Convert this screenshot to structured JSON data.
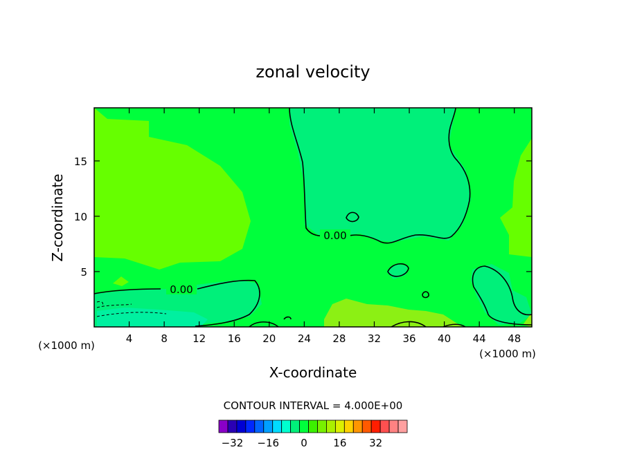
{
  "chart_data": {
    "type": "contour",
    "title": "zonal velocity",
    "xlabel": "X-coordinate",
    "ylabel": "Z-coordinate",
    "x_unit_note": "(×1000 m)",
    "y_unit_note": "(×1000 m)",
    "xlim": [
      0,
      50
    ],
    "ylim": [
      0,
      19.8
    ],
    "x_ticks": [
      4,
      8,
      12,
      16,
      20,
      24,
      28,
      32,
      36,
      40,
      44,
      48
    ],
    "y_ticks": [
      5,
      10,
      15
    ],
    "x_tick_labels": [
      "4",
      "8",
      "12",
      "16",
      "20",
      "24",
      "28",
      "32",
      "36",
      "40",
      "44",
      "48"
    ],
    "y_tick_labels": [
      "5",
      "10",
      "15"
    ],
    "contour_line_labels": [
      "0.00",
      "0.00"
    ],
    "contour_interval_text": "CONTOUR INTERVAL = 4.000E+00",
    "colorbar": {
      "levels": [
        -36,
        -32,
        -28,
        -24,
        -20,
        -16,
        -12,
        -8,
        -4,
        0,
        4,
        8,
        12,
        16,
        20,
        24,
        28,
        32,
        36
      ],
      "colors": [
        "#8a00c8",
        "#2a00b4",
        "#0000d4",
        "#0028ff",
        "#0064ff",
        "#00a0ff",
        "#00dcff",
        "#00ffd0",
        "#00f07a",
        "#00ff3c",
        "#3cf000",
        "#78f000",
        "#aaf000",
        "#dcf000",
        "#ffd200",
        "#ff9600",
        "#ff5a00",
        "#ff1e00",
        "#ff5050",
        "#ff8282",
        "#ffa0a0"
      ],
      "tick_values": [
        -32,
        -16,
        0,
        16,
        32
      ],
      "tick_labels": [
        "−32",
        "−16",
        "0",
        "16",
        "32"
      ]
    },
    "field_colors": {
      "background": "#00ff3c",
      "weak_positive": "#66ff00",
      "weak_negative": "#00f07a",
      "negative": "#00f0a0",
      "positive_patch": "#8cf014"
    }
  }
}
